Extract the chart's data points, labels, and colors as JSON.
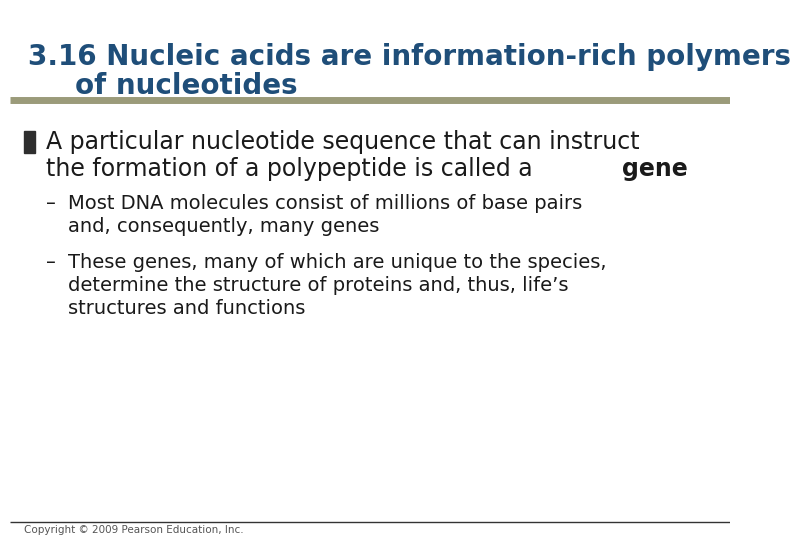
{
  "title_line1": "3.16 Nucleic acids are information-rich polymers",
  "title_line2": "of nucleotides",
  "title_color": "#1F4E79",
  "title_fontsize": 20,
  "background_color": "#FFFFFF",
  "separator_color_top": "#9B9B7A",
  "separator_color_bottom": "#333333",
  "bullet_text_line1": "A particular nucleotide sequence that can instruct",
  "bullet_text_line2_pre": "the formation of a polypeptide is called a ",
  "bullet_text_line2_bold": "gene",
  "bullet_fontsize": 17,
  "sub_bullet1_line1": "Most DNA molecules consist of millions of base pairs",
  "sub_bullet1_line2": "and, consequently, many genes",
  "sub_bullet2_line1": "These genes, many of which are unique to the species,",
  "sub_bullet2_line2": "determine the structure of proteins and, thus, life’s",
  "sub_bullet2_line3": "structures and functions",
  "sub_bullet_fontsize": 14,
  "sub_bullet_color": "#1A1A1A",
  "copyright_text": "Copyright © 2009 Pearson Education, Inc.",
  "copyright_fontsize": 7.5,
  "copyright_color": "#555555"
}
